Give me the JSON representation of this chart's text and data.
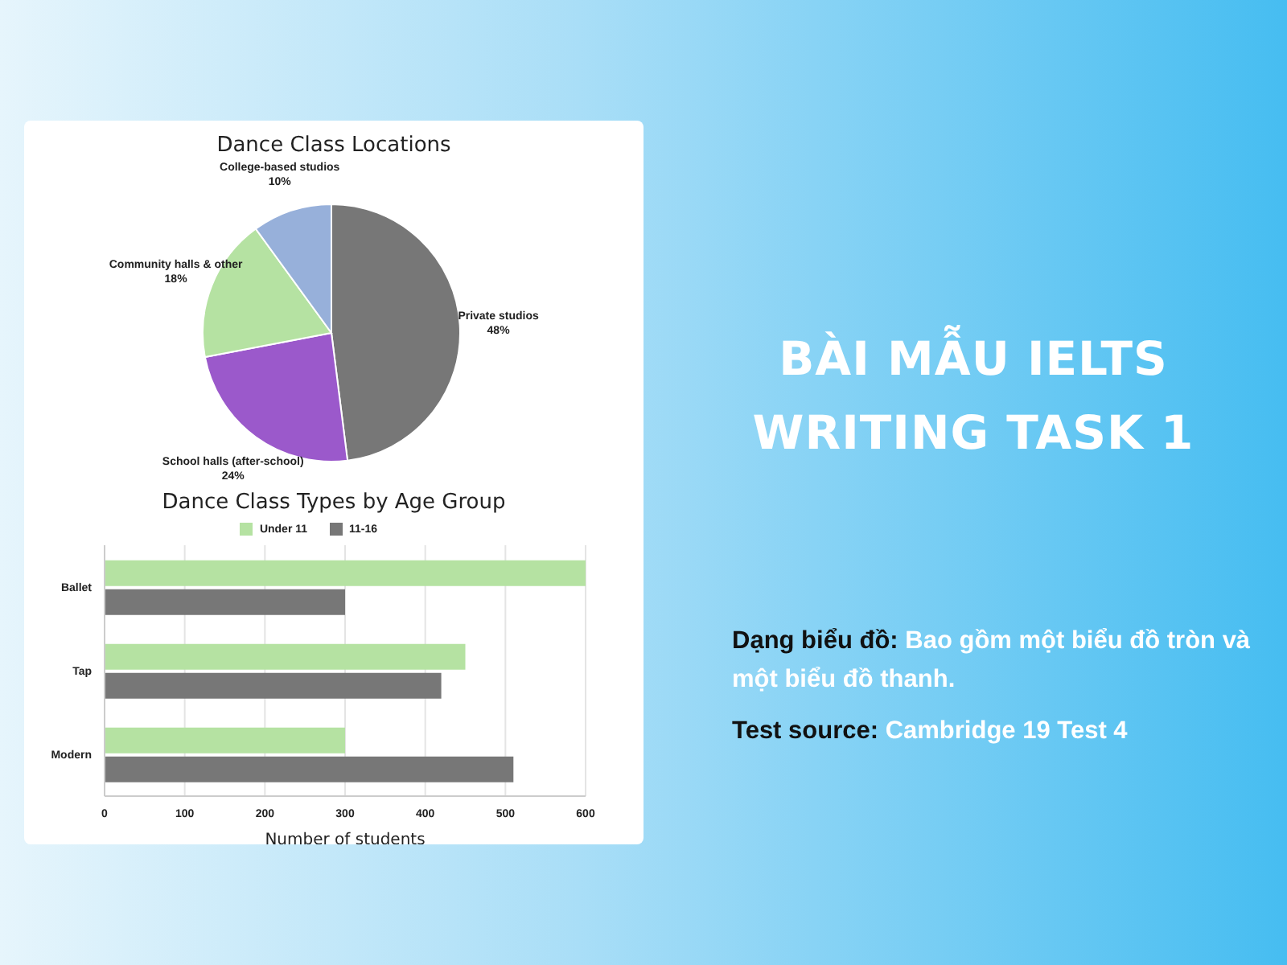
{
  "chart_data": [
    {
      "type": "pie",
      "title": "Dance Class Locations",
      "categories": [
        "Private studios",
        "School halls (after-school)",
        "Community halls & other",
        "College-based studios"
      ],
      "values": [
        48,
        24,
        18,
        10
      ],
      "colors": [
        "#777777",
        "#9b59cb",
        "#b5e2a2",
        "#97b0da"
      ],
      "value_labels": [
        "48%",
        "24%",
        "18%",
        "10%"
      ]
    },
    {
      "type": "bar",
      "orientation": "horizontal",
      "title": "Dance Class Types by Age Group",
      "xlabel": "Number of students",
      "categories": [
        "Ballet",
        "Tap",
        "Modern"
      ],
      "series": [
        {
          "name": "Under 11",
          "color": "#b5e2a2",
          "values": [
            600,
            450,
            300
          ]
        },
        {
          "name": "11-16",
          "color": "#777777",
          "values": [
            300,
            420,
            510
          ]
        }
      ],
      "xlim": [
        0,
        600
      ],
      "xticks": [
        0,
        100,
        200,
        300,
        400,
        500,
        600
      ],
      "grid": "x",
      "legend": "top"
    },
    {
      "type": "other",
      "title": "BÀI MẪU IELTS WRITING TASK 1",
      "annotations": [
        "Dạng biểu đồ: Bao gồm một biểu đồ tròn và một biểu đồ thanh.",
        "Test source: Cambridge 19 Test 4"
      ]
    }
  ]
}
